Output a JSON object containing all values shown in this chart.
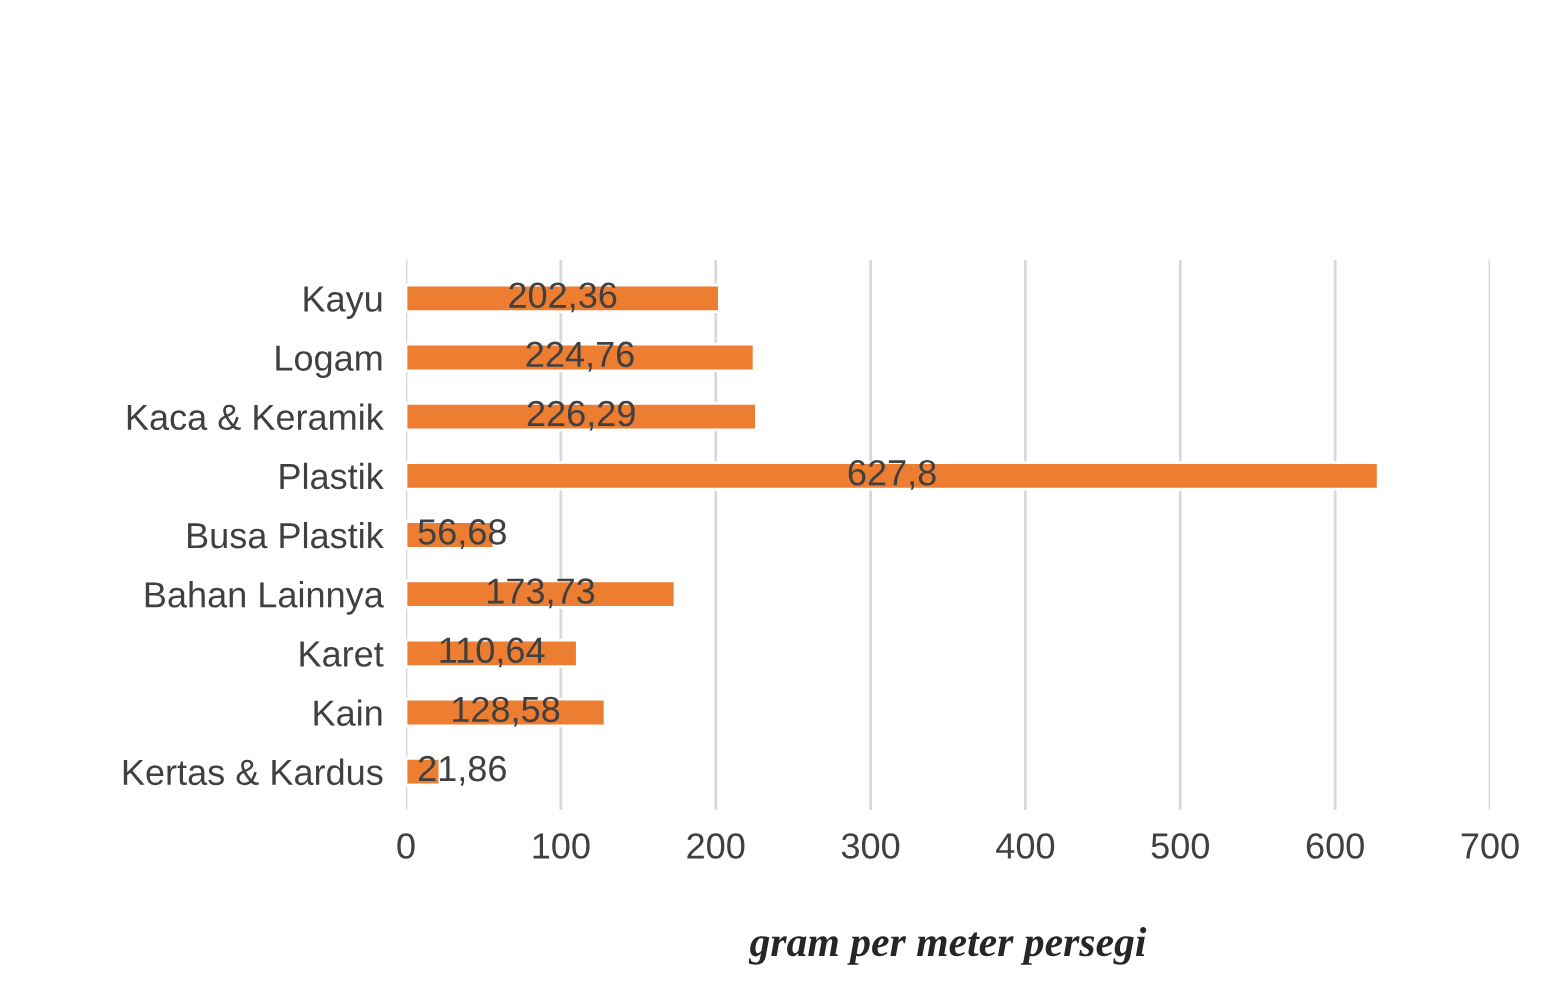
{
  "chart_data": {
    "type": "bar",
    "orientation": "horizontal",
    "xlabel": "gram per meter persegi",
    "categories": [
      "Kayu",
      "Logam",
      "Kaca & Keramik",
      "Plastik",
      "Busa Plastik",
      "Bahan Lainnya",
      "Karet",
      "Kain",
      "Kertas & Kardus"
    ],
    "values": [
      202.36,
      224.76,
      226.29,
      627.8,
      56.68,
      173.73,
      110.64,
      128.58,
      21.86
    ],
    "value_labels": [
      "202,36",
      "224,76",
      "226,29",
      "627,8",
      "56,68",
      "173,73",
      "110,64",
      "128,58",
      "21,86"
    ],
    "color": "#ed7d31",
    "xlim": [
      0,
      700
    ],
    "xticks": [
      0,
      100,
      200,
      300,
      400,
      500,
      600,
      700
    ],
    "grid": "x",
    "legend": false
  }
}
